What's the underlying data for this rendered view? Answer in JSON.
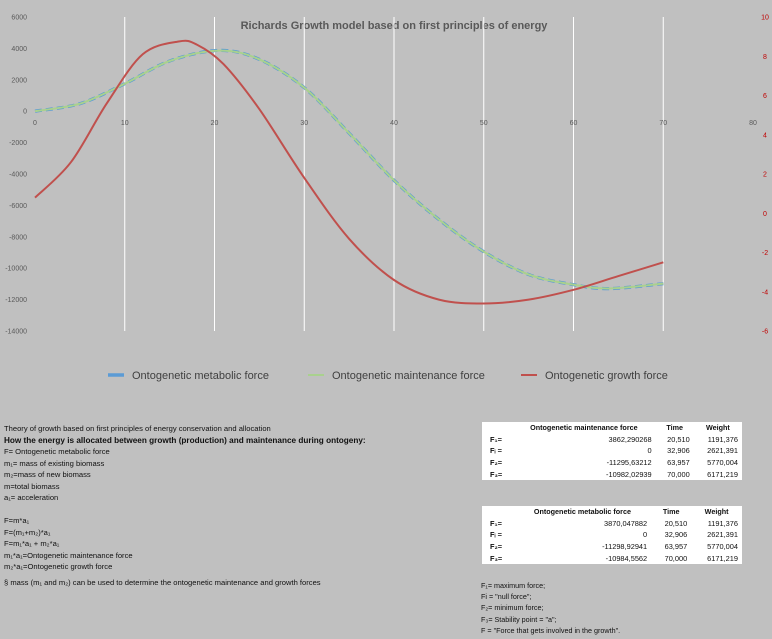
{
  "chart_data": {
    "type": "line",
    "title": "Richards Growth model based on first principles of energy",
    "xlabel": "",
    "ylabel": "",
    "xlim": [
      0,
      80
    ],
    "ylim": [
      -14000,
      6000
    ],
    "y2lim": [
      -6,
      10
    ],
    "x_ticks": [
      "0",
      "10",
      "20",
      "30",
      "40",
      "50",
      "60",
      "70",
      "80"
    ],
    "y_ticks": [
      "6000",
      "4000",
      "2000",
      "0",
      "-2000",
      "-4000",
      "-6000",
      "-8000",
      "-10000",
      "-12000",
      "-14000"
    ],
    "y2_ticks": [
      "10",
      "8",
      "6",
      "4",
      "2",
      "0",
      "-2",
      "-4",
      "-6"
    ],
    "grid": "vertical",
    "legend_position": "bottom",
    "series": [
      {
        "name": "Ontogenetic metabolic force",
        "axis": "left",
        "color": "#5b9bd5",
        "style": "dashed",
        "x": [
          0,
          5,
          10,
          15,
          20.5,
          25,
          30,
          35,
          40,
          45,
          50,
          55,
          60,
          64,
          70
        ],
        "y": [
          0,
          480,
          1750,
          3200,
          3870,
          3300,
          1500,
          -1400,
          -4400,
          -6900,
          -8950,
          -10400,
          -11050,
          -11300,
          -10985
        ]
      },
      {
        "name": "Ontogenetic  maintenance force",
        "axis": "left",
        "color": "#a9d18e",
        "style": "solid",
        "x": [
          0,
          5,
          10,
          15,
          20.5,
          25,
          30,
          35,
          40,
          45,
          50,
          55,
          60,
          64,
          70
        ],
        "y": [
          0,
          480,
          1750,
          3200,
          3862,
          3300,
          1500,
          -1400,
          -4400,
          -6900,
          -8950,
          -10400,
          -11050,
          -11296,
          -10982
        ]
      },
      {
        "name": "Ontogenetic growth force",
        "axis": "right",
        "color": "#c0504d",
        "style": "solid",
        "x": [
          0,
          4,
          8,
          12,
          16,
          18,
          21,
          25,
          30,
          35,
          40,
          45,
          50,
          55,
          60,
          65,
          70
        ],
        "y": [
          0.8,
          2.6,
          5.6,
          8.1,
          8.75,
          8.6,
          7.6,
          5.3,
          1.8,
          -1.3,
          -3.4,
          -4.4,
          -4.6,
          -4.4,
          -3.9,
          -3.2,
          -2.5
        ]
      }
    ]
  },
  "theory": {
    "title": "Theory of growth based on first principles of energy conservation and allocation",
    "heading": "How the energy is allocated between growth (production) and maintenance during ontogeny:",
    "lines": [
      "F= Ontogenetic metabolic force",
      "m₁= mass of existing biomass",
      "m₂=mass of new biomass",
      "m=total biomass",
      "a₁= acceleration",
      "",
      "F=m*a₁",
      "F=(m₁+m₂)*a₁",
      "F=m₁*a₁ + m₂*a₁",
      "m₁*a₁=Ontogenetic maintenance force",
      "m₂*a₁=Ontogenetic growth force"
    ],
    "footnote": "§ mass (m₁ and m₂) can be used to determine the ontogenetic maintenance and growth forces"
  },
  "table_maintenance": {
    "headers": [
      "",
      "Ontogenetic maintenance force",
      "Time",
      "Weight"
    ],
    "rows": [
      [
        "F₁=",
        "3862,290268",
        "20,510",
        "1191,376"
      ],
      [
        "Fᵢ =",
        "0",
        "32,906",
        "2621,391"
      ],
      [
        "F₂=",
        "-11295,63212",
        "63,957",
        "5770,004"
      ],
      [
        "F₃=",
        "-10982,02939",
        "70,000",
        "6171,219"
      ]
    ]
  },
  "table_metabolic": {
    "headers": [
      "",
      "Ontogenetic metabolic force",
      "Time",
      "Weight"
    ],
    "rows": [
      [
        "F₁=",
        "3870,047882",
        "20,510",
        "1191,376"
      ],
      [
        "Fᵢ =",
        "0",
        "32,906",
        "2621,391"
      ],
      [
        "F₂=",
        "-11298,92941",
        "63,957",
        "5770,004"
      ],
      [
        "F₃=",
        "-10984,5562",
        "70,000",
        "6171,219"
      ]
    ]
  },
  "legend_notes": [
    "F₁= maximum force;",
    "Fi = \"null force\";",
    "F₂= minimum force;",
    "F₃= Stability point = \"a\";",
    "F  = \"Force that gets involved in the growth\"."
  ]
}
